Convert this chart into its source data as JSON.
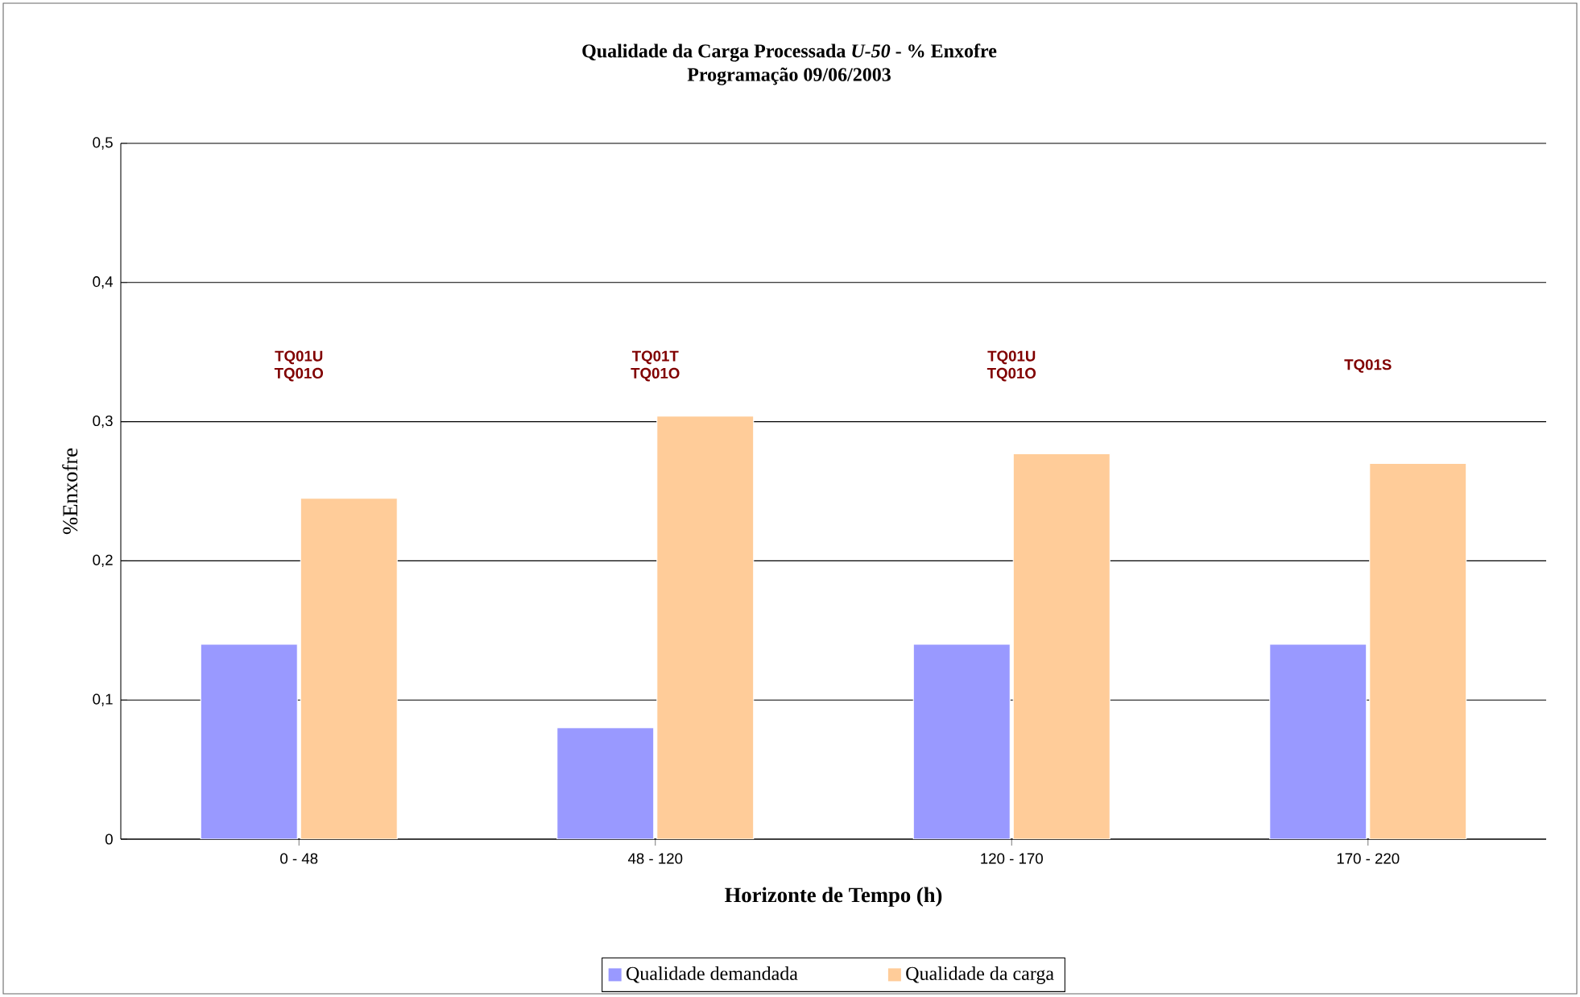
{
  "chart_data": {
    "type": "bar",
    "title": "Qualidade da Carga Processada *U-50* - % Enxofre",
    "subtitle": "Programação 09/06/2003",
    "xlabel": "Horizonte de Tempo (h)",
    "ylabel": "%Enxofre",
    "categories": [
      "0 - 48",
      "48 - 120",
      "120 - 170",
      "170 - 220"
    ],
    "series": [
      {
        "name": "Qualidade demandada",
        "color": "#9999ff",
        "values": [
          0.14,
          0.08,
          0.14,
          0.14
        ]
      },
      {
        "name": "Qualidade da carga",
        "color": "#ffcc99",
        "values": [
          0.245,
          0.304,
          0.277,
          0.27
        ]
      }
    ],
    "ylim": [
      0,
      0.5
    ],
    "yticks": [
      0,
      {
        "value": 0.1,
        "label": "0,1"
      },
      {
        "value": 0.2,
        "label": "0,2"
      },
      {
        "value": 0.3,
        "label": "0,3"
      },
      {
        "value": 0.4,
        "label": "0,4"
      },
      {
        "value": 0.5,
        "label": "0,5"
      }
    ],
    "grid": "y",
    "legend": "bottom",
    "annotations": [
      "TQ01U TQ01O",
      "TQ01T TQ01O",
      "TQ01U TQ01O",
      "TQ01S"
    ]
  }
}
